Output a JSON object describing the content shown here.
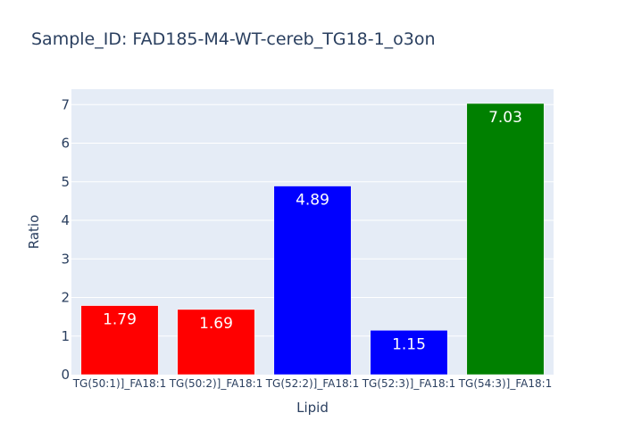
{
  "chart_data": {
    "type": "bar",
    "title": "Sample_ID: FAD185-M4-WT-cereb_TG18-1_o3on",
    "xlabel": "Lipid",
    "ylabel": "Ratio",
    "categories": [
      "TG(50:1)]_FA18:1",
      "TG(50:2)]_FA18:1",
      "TG(52:2)]_FA18:1",
      "TG(52:3)]_FA18:1",
      "TG(54:3)]_FA18:1"
    ],
    "values": [
      1.79,
      1.69,
      4.89,
      1.15,
      7.03
    ],
    "value_labels": [
      "1.79",
      "1.69",
      "4.89",
      "1.15",
      "7.03"
    ],
    "colors": [
      "#ff0000",
      "#ff0000",
      "#0000ff",
      "#0000ff",
      "#008000"
    ],
    "ylim": [
      0,
      7.4
    ],
    "yticks": [
      0,
      1,
      2,
      3,
      4,
      5,
      6,
      7
    ],
    "grid": true,
    "plot_bgcolor": "#e5ecf6"
  }
}
